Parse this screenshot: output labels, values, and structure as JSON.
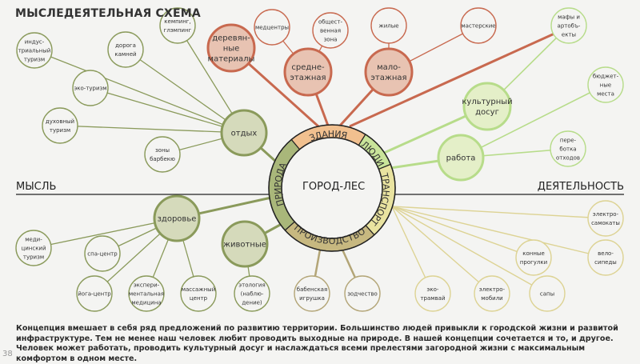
{
  "title": "МЫСЛЕДЕЯТЕЛЬНАЯ СХЕМА",
  "axis": {
    "left": "МЫСЛЬ",
    "center": "ГОРОД-ЛЕС",
    "right": "ДЕЯТЕЛЬНОСТЬ"
  },
  "description": "Концепция вмешает в себя ряд предложений по развитию территории. Большинство людей привыкли к городской жизни и развитой инфраструктуре. Тем не менее наш человек любит проводить выходные на природе. В нашей концепции сочетается и то, и другое. Человек может работать, проводить культурный досуг и наслаждаться всеми прелестями загородной жизни с максимальным комфортом в одном месте.",
  "page_number": "38",
  "colors": {
    "nature": "#8a9a5b",
    "nature_fill": "#d5dabb",
    "nature_ring": "#a9b77a",
    "buildings": "#c8694f",
    "buildings_fill": "#e8c3b2",
    "buildings_ring": "#f1c08f",
    "people": "#b7dc8a",
    "people_fill": "#e4efc8",
    "people_ring": "#c9e49a",
    "transport": "#ddd394",
    "transport_ring": "#e9e3a0",
    "production": "#b3a577",
    "production_ring": "#c7b880"
  },
  "ring": [
    {
      "id": "buildings",
      "label": "ЗДАНИЯ"
    },
    {
      "id": "people",
      "label": "ЛЮДИ"
    },
    {
      "id": "transport",
      "label": "ТРАНСПОРТ"
    },
    {
      "id": "production",
      "label": "ПРОИЗВОДСТВО"
    },
    {
      "id": "nature",
      "label": "ПРИРОДА"
    }
  ],
  "nodes": [
    {
      "id": "rest",
      "group": "nature",
      "major": true,
      "lines": [
        "отдых"
      ]
    },
    {
      "id": "health",
      "group": "nature",
      "major": true,
      "lines": [
        "здоровье"
      ]
    },
    {
      "id": "animals",
      "group": "nature",
      "major": true,
      "lines": [
        "животные"
      ]
    },
    {
      "id": "ind",
      "group": "nature",
      "parent": "rest",
      "lines": [
        "индус-",
        "триальный",
        "туризм"
      ]
    },
    {
      "id": "road",
      "group": "nature",
      "parent": "rest",
      "lines": [
        "дорога",
        "камней"
      ]
    },
    {
      "id": "camp",
      "group": "nature",
      "parent": "rest",
      "lines": [
        "кемпинг,",
        "глэмпинг"
      ]
    },
    {
      "id": "eco",
      "group": "nature",
      "parent": "rest",
      "lines": [
        "эко-туризм"
      ]
    },
    {
      "id": "spirit",
      "group": "nature",
      "parent": "rest",
      "lines": [
        "духовный",
        "туризм"
      ]
    },
    {
      "id": "bbq",
      "group": "nature",
      "parent": "rest",
      "lines": [
        "зоны",
        "барбекю"
      ]
    },
    {
      "id": "med",
      "group": "nature",
      "parent": "health",
      "lines": [
        "меди-",
        "цинский",
        "туризм"
      ]
    },
    {
      "id": "spa",
      "group": "nature",
      "parent": "health",
      "lines": [
        "спа-центр"
      ]
    },
    {
      "id": "yoga",
      "group": "nature",
      "parent": "health",
      "lines": [
        "йога-центр"
      ]
    },
    {
      "id": "expmed",
      "group": "nature",
      "parent": "health",
      "lines": [
        "экспери-",
        "ментальная",
        "медицина"
      ]
    },
    {
      "id": "massage",
      "group": "nature",
      "parent": "health",
      "lines": [
        "массажный",
        "центр"
      ]
    },
    {
      "id": "etho",
      "group": "nature",
      "parent": "animals",
      "lines": [
        "этология",
        "(наблю-",
        "дение)"
      ]
    },
    {
      "id": "toy",
      "group": "production",
      "lines": [
        "бабенская",
        "игрушка"
      ]
    },
    {
      "id": "craft",
      "group": "production",
      "lines": [
        "зодчество"
      ]
    },
    {
      "id": "wood",
      "group": "buildings",
      "major": true,
      "lines": [
        "деревян-",
        "ные",
        "материалы"
      ]
    },
    {
      "id": "mid",
      "group": "buildings",
      "major": true,
      "lines": [
        "средне-",
        "этажная"
      ]
    },
    {
      "id": "low",
      "group": "buildings",
      "major": true,
      "lines": [
        "мало-",
        "этажная"
      ]
    },
    {
      "id": "medc",
      "group": "buildings",
      "parent": "mid",
      "lines": [
        "медцентры"
      ]
    },
    {
      "id": "pub",
      "group": "buildings",
      "parent": "mid",
      "lines": [
        "общест-",
        "венная",
        "зона"
      ]
    },
    {
      "id": "res",
      "group": "buildings",
      "parent": "low",
      "lines": [
        "жилые"
      ]
    },
    {
      "id": "work",
      "group": "buildings",
      "parent": "low",
      "lines": [
        "мастерские"
      ]
    },
    {
      "id": "culture",
      "group": "people",
      "major": true,
      "lines": [
        "культурный",
        "досуг"
      ]
    },
    {
      "id": "job",
      "group": "people",
      "major": true,
      "lines": [
        "работа"
      ]
    },
    {
      "id": "maf",
      "group": "people",
      "parent": "culture",
      "lines": [
        "мафы и",
        "артобъ-",
        "екты"
      ]
    },
    {
      "id": "budget",
      "group": "people",
      "parent": "job",
      "lines": [
        "бюджет-",
        "ные",
        "места"
      ]
    },
    {
      "id": "recycle",
      "group": "people",
      "parent": "job",
      "lines": [
        "пере-",
        "ботка",
        "отходов"
      ]
    },
    {
      "id": "scoot",
      "group": "transport",
      "lines": [
        "электро-",
        "самокаты"
      ]
    },
    {
      "id": "bike",
      "group": "transport",
      "lines": [
        "вело-",
        "сипеды"
      ]
    },
    {
      "id": "horse",
      "group": "transport",
      "lines": [
        "конные",
        "прогулки"
      ]
    },
    {
      "id": "sup",
      "group": "transport",
      "lines": [
        "сапы"
      ]
    },
    {
      "id": "ecar",
      "group": "transport",
      "lines": [
        "электро-",
        "мобили"
      ]
    },
    {
      "id": "tram",
      "group": "transport",
      "lines": [
        "эко-",
        "трамвай"
      ]
    }
  ]
}
